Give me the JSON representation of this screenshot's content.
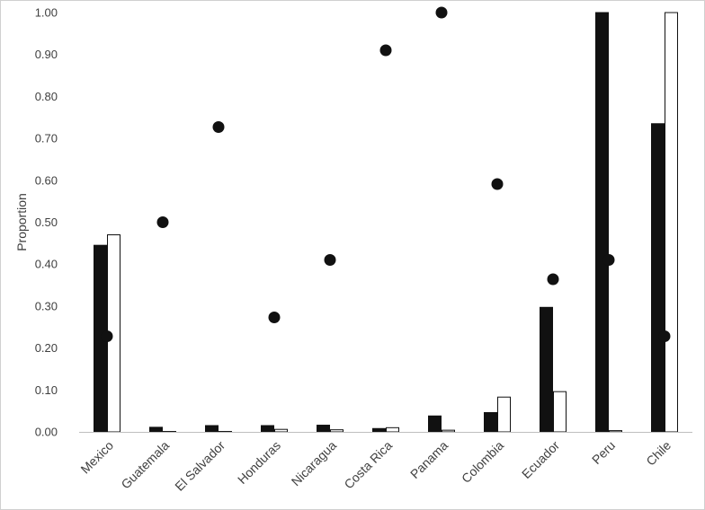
{
  "chart_data": {
    "type": "bar",
    "title": "",
    "xlabel": "",
    "ylabel": "Proportion",
    "ylim": [
      0,
      1
    ],
    "yticks": [
      "0.00",
      "0.10",
      "0.20",
      "0.30",
      "0.40",
      "0.50",
      "0.60",
      "0.70",
      "0.80",
      "0.90",
      "1.00"
    ],
    "grid": false,
    "legend": "none",
    "categories": [
      "Mexico",
      "Guatemala",
      "El Salvador",
      "Honduras",
      "Nicaragua",
      "Costa Rica",
      "Panama",
      "Colombia",
      "Ecuador",
      "Peru",
      "Chile"
    ],
    "series": [
      {
        "type": "bar",
        "color": "#111111",
        "values": [
          0.445,
          0.011,
          0.015,
          0.015,
          0.016,
          0.008,
          0.038,
          0.046,
          0.297,
          1.0,
          0.735
        ]
      },
      {
        "type": "bar",
        "color": "#ffffff",
        "values": [
          0.47,
          0.001,
          0.001,
          0.006,
          0.005,
          0.01,
          0.004,
          0.083,
          0.096,
          0.003,
          1.0
        ]
      },
      {
        "type": "scatter",
        "color": "#111111",
        "values": [
          0.228,
          0.5,
          0.727,
          0.273,
          0.41,
          0.91,
          1.0,
          0.591,
          0.364,
          0.41,
          0.228
        ]
      }
    ]
  }
}
